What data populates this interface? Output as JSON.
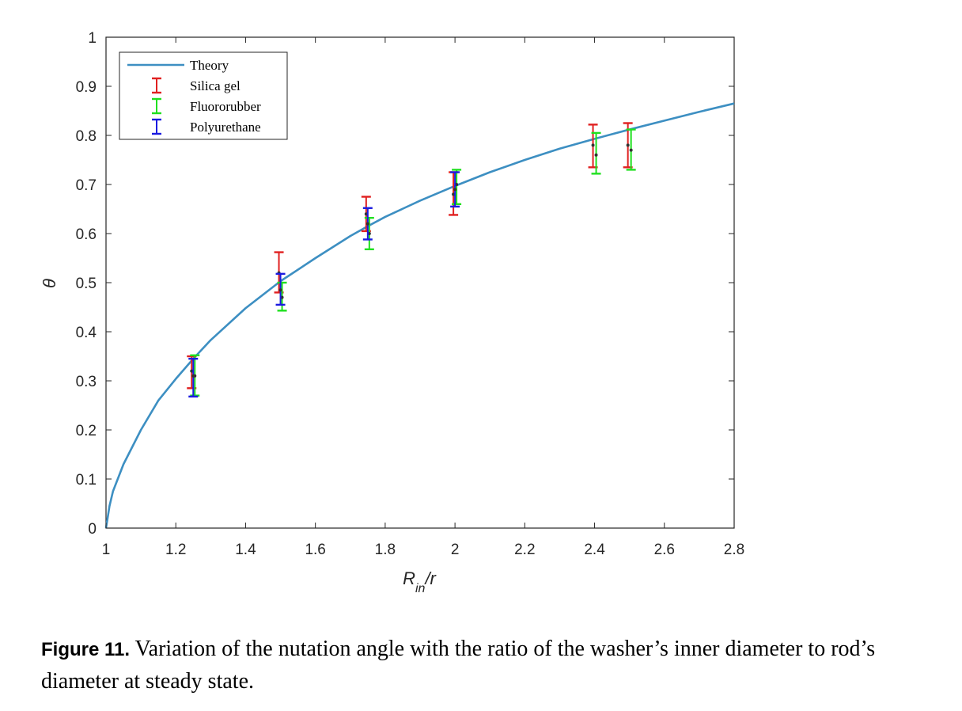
{
  "chart_data": {
    "type": "line",
    "title": "",
    "xlabel": {
      "base": "R",
      "sub": "in",
      "rest": "/r"
    },
    "ylabel": "θ",
    "xlim": [
      1,
      2.8
    ],
    "ylim": [
      0,
      1
    ],
    "xticks": [
      "1",
      "1.2",
      "1.4",
      "1.6",
      "1.8",
      "2",
      "2.2",
      "2.4",
      "2.6",
      "2.8"
    ],
    "yticks": [
      "0",
      "0.1",
      "0.2",
      "0.3",
      "0.4",
      "0.5",
      "0.6",
      "0.7",
      "0.8",
      "0.9",
      "1"
    ],
    "legend_position": "top-left",
    "theory": {
      "name": "Theory",
      "color": "#3d8fc2",
      "x": [
        1.0,
        1.01,
        1.02,
        1.05,
        1.1,
        1.15,
        1.2,
        1.25,
        1.3,
        1.4,
        1.5,
        1.6,
        1.7,
        1.75,
        1.8,
        1.9,
        2.0,
        2.1,
        2.2,
        2.3,
        2.4,
        2.5,
        2.6,
        2.7,
        2.8
      ],
      "y": [
        0.0,
        0.045,
        0.075,
        0.13,
        0.2,
        0.26,
        0.304,
        0.345,
        0.383,
        0.448,
        0.503,
        0.55,
        0.595,
        0.615,
        0.634,
        0.667,
        0.697,
        0.725,
        0.75,
        0.773,
        0.793,
        0.812,
        0.83,
        0.848,
        0.865
      ]
    },
    "series": [
      {
        "name": "Silica gel",
        "color": "#e02020",
        "points": [
          {
            "x": 1.25,
            "y": 0.32,
            "low": 0.285,
            "high": 0.35
          },
          {
            "x": 1.5,
            "y": 0.52,
            "low": 0.48,
            "high": 0.562
          },
          {
            "x": 1.75,
            "y": 0.64,
            "low": 0.605,
            "high": 0.675
          },
          {
            "x": 2.0,
            "y": 0.68,
            "low": 0.638,
            "high": 0.725
          },
          {
            "x": 2.4,
            "y": 0.78,
            "low": 0.735,
            "high": 0.822
          },
          {
            "x": 2.5,
            "y": 0.78,
            "low": 0.735,
            "high": 0.825
          }
        ]
      },
      {
        "name": "Fluororubber",
        "color": "#1fe01f",
        "points": [
          {
            "x": 1.25,
            "y": 0.31,
            "low": 0.27,
            "high": 0.352
          },
          {
            "x": 1.5,
            "y": 0.47,
            "low": 0.443,
            "high": 0.5
          },
          {
            "x": 1.75,
            "y": 0.6,
            "low": 0.568,
            "high": 0.632
          },
          {
            "x": 2.0,
            "y": 0.7,
            "low": 0.66,
            "high": 0.73
          },
          {
            "x": 2.4,
            "y": 0.76,
            "low": 0.722,
            "high": 0.805
          },
          {
            "x": 2.5,
            "y": 0.77,
            "low": 0.73,
            "high": 0.812
          }
        ]
      },
      {
        "name": "Polyurethane",
        "color": "#1a1ae0",
        "points": [
          {
            "x": 1.25,
            "y": 0.31,
            "low": 0.268,
            "high": 0.345
          },
          {
            "x": 1.5,
            "y": 0.485,
            "low": 0.455,
            "high": 0.518
          },
          {
            "x": 1.75,
            "y": 0.62,
            "low": 0.588,
            "high": 0.652
          },
          {
            "x": 2.0,
            "y": 0.69,
            "low": 0.655,
            "high": 0.725
          }
        ]
      }
    ]
  },
  "caption": {
    "label": "Figure 11.",
    "text": " Variation of the nutation angle with the ratio of the washer’s inner diameter to rod’s diameter at steady state."
  }
}
